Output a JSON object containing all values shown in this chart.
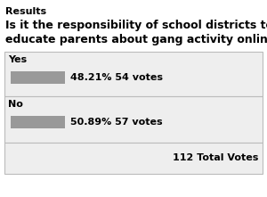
{
  "title": "Results",
  "question_line1": "Is it the responsibility of school districts to",
  "question_line2": "educate parents about gang activity online?",
  "options": [
    "Yes",
    "No"
  ],
  "percentages": [
    48.21,
    50.89
  ],
  "votes": [
    54,
    57
  ],
  "total_votes": 112,
  "bar_color": "#999999",
  "bg_color": "#eeeeee",
  "outer_bg": "#ffffff",
  "border_color": "#bbbbbb",
  "title_fontsize": 8,
  "question_fontsize": 9,
  "label_fontsize": 8,
  "bar_scale": 0.22
}
